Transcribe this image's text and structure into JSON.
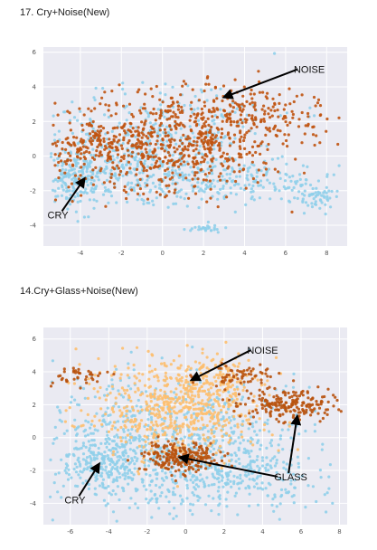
{
  "panels": [
    {
      "title": "17. Cry+Noise(New)"
    },
    {
      "title": "14.Cry+Glass+Noise(New)"
    }
  ],
  "chart_data": [
    {
      "type": "scatter",
      "title": "17. Cry+Noise(New)",
      "xlabel": "",
      "ylabel": "",
      "xlim": [
        -5.8,
        9.0
      ],
      "ylim": [
        -5.2,
        6.3
      ],
      "xticks": [
        -4,
        -2,
        0,
        2,
        4,
        6,
        8
      ],
      "yticks": [
        -4,
        -2,
        0,
        2,
        4,
        6
      ],
      "grid": true,
      "background": "#eaeaf2",
      "series": [
        {
          "color": "#8fcfea",
          "clusters": [
            {
              "cx": -1.5,
              "cy": -0.5,
              "sx": 2.8,
              "sy": 1.3,
              "n": 500
            },
            {
              "cx": -4.2,
              "cy": -1.3,
              "sx": 0.5,
              "sy": 0.7,
              "n": 120
            },
            {
              "cx": 3.5,
              "cy": -1.5,
              "sx": 2.5,
              "sy": 0.6,
              "n": 180
            },
            {
              "cx": 7.3,
              "cy": -2.3,
              "sx": 0.7,
              "sy": 0.4,
              "n": 60
            },
            {
              "cx": 2.2,
              "cy": -4.2,
              "sx": 0.4,
              "sy": 0.1,
              "n": 25
            },
            {
              "cx": 0.5,
              "cy": 2.5,
              "sx": 3.0,
              "sy": 1.0,
              "n": 120
            }
          ]
        },
        {
          "color": "#c0530f",
          "clusters": [
            {
              "cx": 0.5,
              "cy": 0.8,
              "sx": 2.8,
              "sy": 1.4,
              "n": 700
            },
            {
              "cx": 4.5,
              "cy": 2.6,
              "sx": 2.0,
              "sy": 0.8,
              "n": 150
            },
            {
              "cx": -3.5,
              "cy": 0.3,
              "sx": 0.9,
              "sy": 0.8,
              "n": 80
            }
          ]
        }
      ],
      "annotations": [
        {
          "text": "NOISE",
          "tx": 6.4,
          "ty": 4.8,
          "px": 3.0,
          "py": 3.4
        },
        {
          "text": "CRY",
          "tx": -5.6,
          "ty": -3.6,
          "px": -3.8,
          "py": -1.3
        }
      ]
    },
    {
      "type": "scatter",
      "title": "14.Cry+Glass+Noise(New)",
      "xlabel": "",
      "ylabel": "",
      "xlim": [
        -7.4,
        8.4
      ],
      "ylim": [
        -5.3,
        6.7
      ],
      "xticks": [
        -6,
        -4,
        -2,
        0,
        2,
        4,
        6,
        8
      ],
      "yticks": [
        -4,
        -2,
        0,
        2,
        4,
        6
      ],
      "grid": true,
      "background": "#eaeaf2",
      "series": [
        {
          "color": "#8fcfea",
          "clusters": [
            {
              "cx": -0.5,
              "cy": -0.5,
              "sx": 3.5,
              "sy": 2.0,
              "n": 900
            },
            {
              "cx": -4.5,
              "cy": -1.5,
              "sx": 1.0,
              "sy": 0.9,
              "n": 150
            },
            {
              "cx": 3.0,
              "cy": -2.5,
              "sx": 2.2,
              "sy": 0.8,
              "n": 150
            }
          ]
        },
        {
          "color": "#fdbf6f",
          "clusters": [
            {
              "cx": -0.5,
              "cy": 1.8,
              "sx": 2.2,
              "sy": 1.4,
              "n": 600
            },
            {
              "cx": 1.5,
              "cy": 3.8,
              "sx": 1.2,
              "sy": 0.7,
              "n": 100
            }
          ]
        },
        {
          "color": "#b8520d",
          "clusters": [
            {
              "cx": -0.3,
              "cy": -1.2,
              "sx": 0.9,
              "sy": 0.45,
              "n": 220
            },
            {
              "cx": 5.3,
              "cy": 2.0,
              "sx": 1.3,
              "sy": 0.5,
              "n": 200
            },
            {
              "cx": 2.8,
              "cy": 3.8,
              "sx": 1.0,
              "sy": 0.4,
              "n": 60
            },
            {
              "cx": -5.5,
              "cy": 3.7,
              "sx": 0.8,
              "sy": 0.3,
              "n": 40
            }
          ]
        }
      ],
      "annotations": [
        {
          "text": "NOISE",
          "tx": 3.2,
          "ty": 5.1,
          "px": 0.3,
          "py": 3.5
        },
        {
          "text": "GLASS",
          "tx": 4.6,
          "ty": -2.6,
          "px": 5.8,
          "py": 1.3
        },
        {
          "text": "GLASS",
          "tx": 4.6,
          "ty": -2.6,
          "px": -0.3,
          "py": -1.2,
          "hide_text": true
        },
        {
          "text": "CRY",
          "tx": -6.3,
          "ty": -4.0,
          "px": -4.5,
          "py": -1.6
        }
      ]
    }
  ]
}
